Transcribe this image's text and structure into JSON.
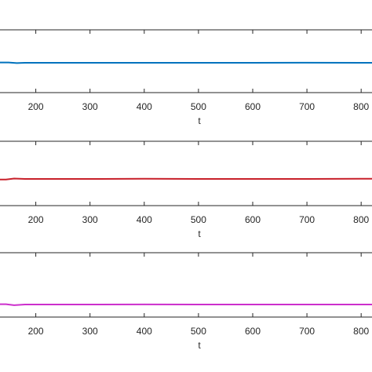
{
  "chart_data": [
    {
      "type": "line",
      "xlabel": "t",
      "xlim": [
        134,
        820
      ],
      "ylim": [
        0,
        1
      ],
      "xticks": [
        200,
        300,
        400,
        500,
        600,
        700,
        800
      ],
      "x": [
        134,
        150,
        165,
        180,
        200,
        300,
        400,
        500,
        600,
        700,
        800,
        820
      ],
      "series": [
        {
          "color": "#0072bd",
          "values": [
            0.48,
            0.48,
            0.47,
            0.475,
            0.475,
            0.475,
            0.475,
            0.475,
            0.475,
            0.477,
            0.475,
            0.475
          ]
        }
      ]
    },
    {
      "type": "line",
      "xlabel": "t",
      "xlim": [
        134,
        820
      ],
      "ylim": [
        0,
        1
      ],
      "xticks": [
        200,
        300,
        400,
        500,
        600,
        700,
        800
      ],
      "x": [
        134,
        145,
        160,
        180,
        200,
        300,
        400,
        500,
        600,
        700,
        800,
        820
      ],
      "series": [
        {
          "color": "#c8202a",
          "values": [
            0.405,
            0.405,
            0.42,
            0.415,
            0.415,
            0.415,
            0.417,
            0.415,
            0.415,
            0.415,
            0.417,
            0.417
          ]
        }
      ]
    },
    {
      "type": "line",
      "xlabel": "t",
      "xlim": [
        134,
        820
      ],
      "ylim": [
        0,
        1
      ],
      "xticks": [
        200,
        300,
        400,
        500,
        600,
        700,
        800
      ],
      "x": [
        134,
        145,
        160,
        180,
        200,
        300,
        400,
        500,
        600,
        700,
        800,
        820
      ],
      "series": [
        {
          "color": "#cc2fcc",
          "values": [
            0.2,
            0.2,
            0.185,
            0.195,
            0.195,
            0.195,
            0.197,
            0.195,
            0.195,
            0.195,
            0.195,
            0.195
          ]
        }
      ]
    }
  ]
}
